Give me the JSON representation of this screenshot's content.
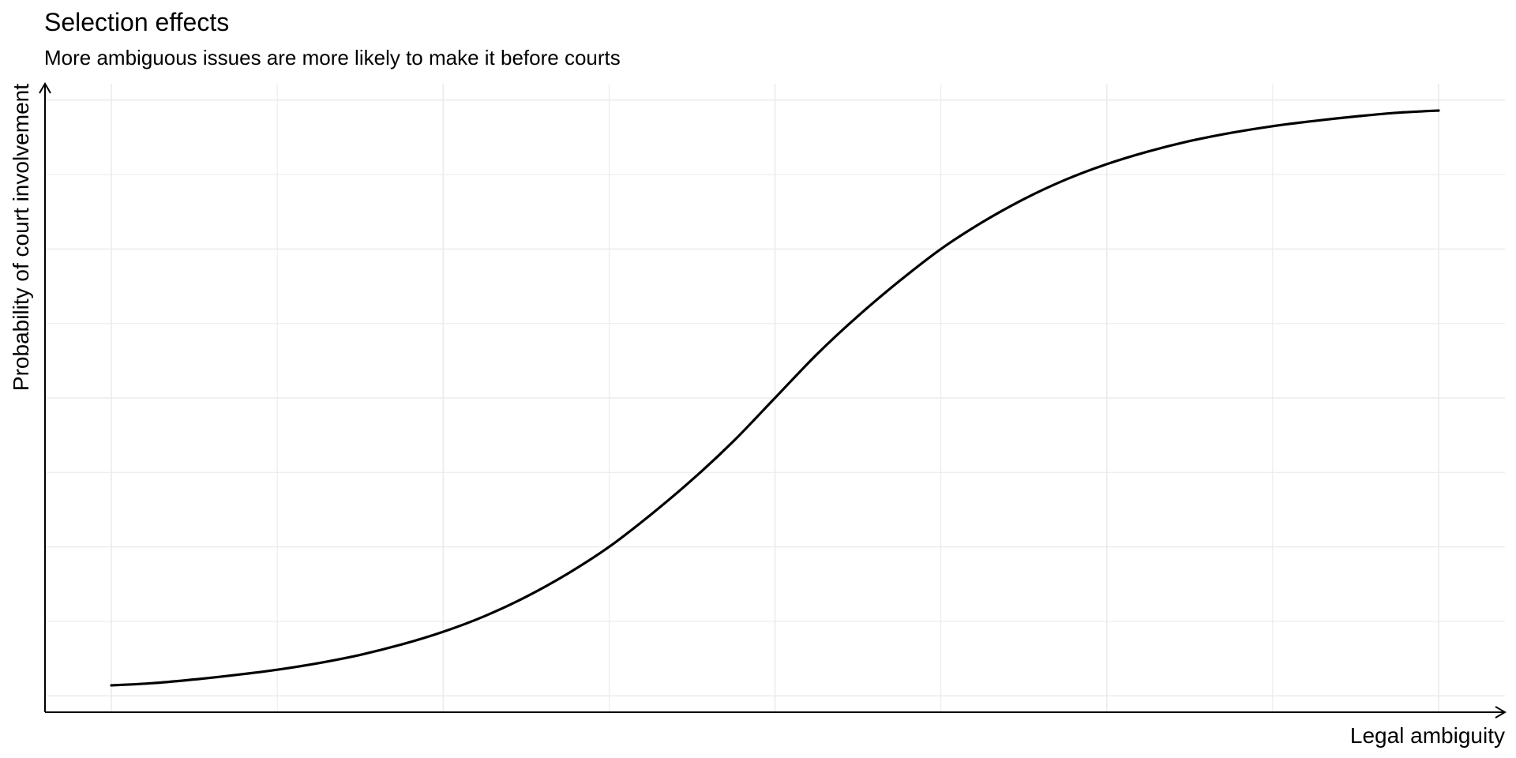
{
  "chart_data": {
    "type": "line",
    "title": "Selection effects",
    "subtitle": "More ambiguous issues are more likely to make it before courts",
    "xlabel": "Legal ambiguity",
    "ylabel": "Probability of court involvement",
    "xlim": [
      -0.4,
      8.4
    ],
    "ylim": [
      -0.022,
      0.822
    ],
    "x_ticks_labeled": false,
    "y_ticks_labeled": false,
    "grid": true,
    "axis_arrows": true,
    "series": [
      {
        "line_color": "#000000",
        "x": [
          0,
          0.25,
          0.5,
          0.75,
          1,
          1.25,
          1.5,
          1.75,
          2,
          2.25,
          2.5,
          2.75,
          3,
          3.25,
          3.5,
          3.75,
          4,
          4.25,
          4.5,
          4.75,
          5,
          5.25,
          5.5,
          5.75,
          6,
          6.25,
          6.5,
          6.75,
          7,
          7.25,
          7.5,
          7.75,
          8
        ],
        "y": [
          0.014,
          0.017,
          0.022,
          0.028,
          0.035,
          0.044,
          0.055,
          0.069,
          0.086,
          0.107,
          0.133,
          0.164,
          0.2,
          0.243,
          0.29,
          0.342,
          0.4,
          0.458,
          0.51,
          0.557,
          0.6,
          0.636,
          0.667,
          0.693,
          0.714,
          0.731,
          0.745,
          0.756,
          0.765,
          0.772,
          0.778,
          0.783,
          0.786
        ]
      }
    ],
    "colors": {
      "grid": "#ebebeb",
      "axis": "#000000",
      "background": "#ffffff"
    }
  }
}
